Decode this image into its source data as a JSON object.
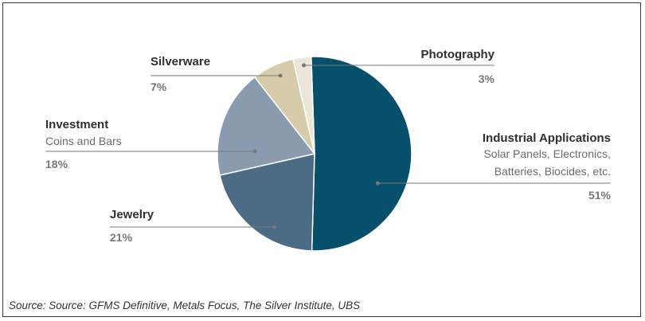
{
  "chart_data": {
    "type": "pie",
    "slices": [
      {
        "label": "Industrial Applications",
        "sublabel": [
          "Solar Panels, Electronics,",
          "Batteries, Biocides, etc."
        ],
        "value": 51,
        "pct_label": "51%",
        "color": "#07506b"
      },
      {
        "label": "Jewelry",
        "sublabel": [],
        "value": 21,
        "pct_label": "21%",
        "color": "#4c6b84"
      },
      {
        "label": "Investment",
        "sublabel": [
          "Coins and Bars"
        ],
        "value": 18,
        "pct_label": "18%",
        "color": "#8a9bb0"
      },
      {
        "label": "Silverware",
        "sublabel": [],
        "value": 7,
        "pct_label": "7%",
        "color": "#d7ccaa"
      },
      {
        "label": "Photography",
        "sublabel": [],
        "value": 3,
        "pct_label": "3%",
        "color": "#ebe6d8"
      }
    ]
  },
  "source": "Source: Source: GFMS Definitive, Metals Focus, The Silver Institute, UBS"
}
